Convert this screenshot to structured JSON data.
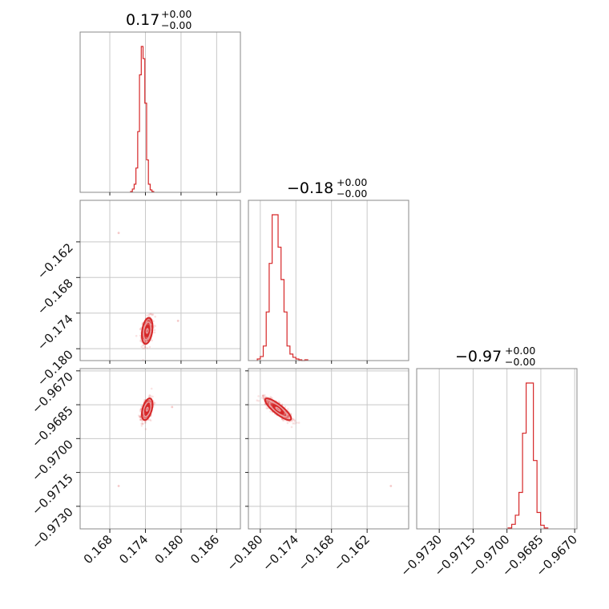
{
  "chart_data": {
    "type": "corner",
    "color": "#d62728",
    "grid": true,
    "parameters": [
      {
        "title_value": "0.17",
        "title_plus": "+0.00",
        "title_minus": "−0.00",
        "range": [
          0.163,
          0.19
        ],
        "ticks": [
          0.168,
          0.174,
          0.18,
          0.186
        ],
        "tick_labels": [
          "0.168",
          "0.174",
          "0.180",
          "0.186"
        ],
        "hist": {
          "edges_start": 0.1715,
          "bin_width": 0.0003,
          "counts": [
            1,
            4,
            10,
            30,
            75,
            145,
            180,
            165,
            110,
            40,
            10,
            3,
            1
          ]
        },
        "center": 0.1743,
        "sigma": 0.00045
      },
      {
        "title_value": "−0.18",
        "title_plus": "+0.00",
        "title_minus": "−0.00",
        "range": [
          -0.182,
          -0.155
        ],
        "ticks": [
          -0.18,
          -0.174,
          -0.168,
          -0.162
        ],
        "tick_labels": [
          "−0.180",
          "−0.174",
          "−0.168",
          "−0.162"
        ],
        "hist": {
          "edges_start": -0.1805,
          "bin_width": 0.0005,
          "counts": [
            2,
            5,
            18,
            60,
            120,
            180,
            180,
            140,
            100,
            60,
            18,
            8,
            4,
            2,
            1,
            0,
            1
          ]
        },
        "center": -0.177,
        "sigma": 0.0011
      },
      {
        "title_value": "−0.97",
        "title_plus": "+0.00",
        "title_minus": "−0.00",
        "range": [
          -0.974,
          -0.9669
        ],
        "ticks": [
          -0.973,
          -0.9715,
          -0.97,
          -0.9685,
          -0.967
        ],
        "tick_labels": [
          "−0.9730",
          "−0.9715",
          "−0.9700",
          "−0.9685",
          "−0.9670"
        ],
        "hist": {
          "edges_start": -0.96995,
          "bin_width": 0.00016,
          "counts": [
            1,
            5,
            15,
            40,
            105,
            160,
            160,
            75,
            18,
            4,
            1
          ]
        },
        "center": -0.9687,
        "sigma": 0.00024
      }
    ],
    "correlations": {
      "p0_p1": 0.3,
      "p0_p2": 0.45,
      "p1_p2": -0.85
    },
    "outliers": {
      "p0_p1": [
        [
          0.1695,
          -0.1605
        ],
        [
          0.1795,
          -0.1753
        ]
      ],
      "p0_p2": [
        [
          0.1695,
          -0.9721
        ],
        [
          0.1785,
          -0.9686
        ]
      ],
      "p1_p2": [
        [
          -0.1795,
          -0.9681
        ],
        [
          -0.158,
          -0.9721
        ]
      ]
    }
  }
}
